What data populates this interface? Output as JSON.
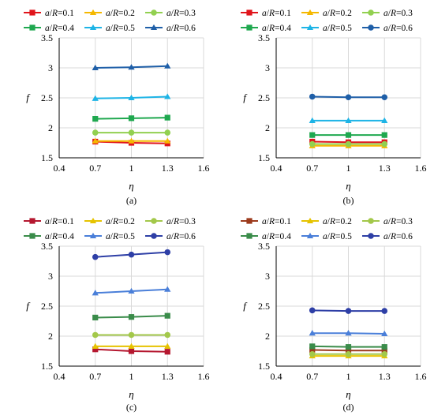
{
  "chart_data": [
    {
      "type": "line",
      "caption": "(a)",
      "xlabel": "η",
      "ylabel": "f",
      "xlim": [
        0.4,
        1.6
      ],
      "ylim": [
        1.5,
        3.5
      ],
      "xticks": [
        "0.4",
        "0.7",
        "1",
        "1.3",
        "1.6"
      ],
      "yticks": [
        "1.5",
        "2",
        "2.5",
        "3",
        "3.5"
      ],
      "grid": true,
      "legend": "top",
      "x": [
        0.7,
        1.0,
        1.3
      ],
      "series": [
        {
          "name": "a/R=0.1",
          "color": "#e0141b",
          "marker": "square",
          "values": [
            1.77,
            1.75,
            1.74
          ]
        },
        {
          "name": "a/R=0.2",
          "color": "#f5b800",
          "marker": "triangle",
          "values": [
            1.78,
            1.78,
            1.78
          ]
        },
        {
          "name": "a/R=0.3",
          "color": "#92d050",
          "marker": "circle",
          "values": [
            1.92,
            1.92,
            1.92
          ]
        },
        {
          "name": "a/R=0.4",
          "color": "#1fa84f",
          "marker": "square",
          "values": [
            2.15,
            2.16,
            2.17
          ]
        },
        {
          "name": "a/R=0.5",
          "color": "#1eb4e6",
          "marker": "triangle",
          "values": [
            2.49,
            2.5,
            2.52
          ]
        },
        {
          "name": "a/R=0.6",
          "color": "#1f5fa8",
          "marker": "triangle",
          "values": [
            3.0,
            3.01,
            3.03
          ]
        }
      ]
    },
    {
      "type": "line",
      "caption": "(b)",
      "xlabel": "η",
      "ylabel": "f",
      "xlim": [
        0.4,
        1.6
      ],
      "ylim": [
        1.5,
        3.5
      ],
      "xticks": [
        "0.4",
        "0.7",
        "1",
        "1.3",
        "1.6"
      ],
      "yticks": [
        "1.5",
        "2",
        "2.5",
        "3",
        "3.5"
      ],
      "grid": true,
      "legend": "top",
      "x": [
        0.7,
        1.0,
        1.3
      ],
      "series": [
        {
          "name": "a/R=0.1",
          "color": "#e0141b",
          "marker": "square",
          "values": [
            1.77,
            1.76,
            1.76
          ]
        },
        {
          "name": "a/R=0.2",
          "color": "#f5b800",
          "marker": "triangle",
          "values": [
            1.7,
            1.7,
            1.7
          ]
        },
        {
          "name": "a/R=0.3",
          "color": "#92d050",
          "marker": "circle",
          "values": [
            1.73,
            1.73,
            1.73
          ]
        },
        {
          "name": "a/R=0.4",
          "color": "#1fa84f",
          "marker": "square",
          "values": [
            1.88,
            1.88,
            1.88
          ]
        },
        {
          "name": "a/R=0.5",
          "color": "#1eb4e6",
          "marker": "triangle",
          "values": [
            2.12,
            2.12,
            2.12
          ]
        },
        {
          "name": "a/R=0.6",
          "color": "#1f5fa8",
          "marker": "circle",
          "values": [
            2.52,
            2.51,
            2.51
          ]
        }
      ]
    },
    {
      "type": "line",
      "caption": "(c)",
      "xlabel": "η",
      "ylabel": "f",
      "xlim": [
        0.4,
        1.6
      ],
      "ylim": [
        1.5,
        3.5
      ],
      "xticks": [
        "0.4",
        "0.7",
        "1",
        "1.3",
        "1.6"
      ],
      "yticks": [
        "1.5",
        "2",
        "2.5",
        "3",
        "3.5"
      ],
      "grid": true,
      "legend": "top",
      "x": [
        0.7,
        1.0,
        1.3
      ],
      "series": [
        {
          "name": "a/R=0.1",
          "color": "#b5172f",
          "marker": "square",
          "values": [
            1.78,
            1.75,
            1.74
          ]
        },
        {
          "name": "a/R=0.2",
          "color": "#e6c300",
          "marker": "triangle",
          "values": [
            1.83,
            1.83,
            1.83
          ]
        },
        {
          "name": "a/R=0.3",
          "color": "#a3c84a",
          "marker": "circle",
          "values": [
            2.02,
            2.02,
            2.02
          ]
        },
        {
          "name": "a/R=0.4",
          "color": "#3a8c4a",
          "marker": "square",
          "values": [
            2.31,
            2.32,
            2.34
          ]
        },
        {
          "name": "a/R=0.5",
          "color": "#4a7fd9",
          "marker": "triangle",
          "values": [
            2.72,
            2.75,
            2.78
          ]
        },
        {
          "name": "a/R=0.6",
          "color": "#2e3fa6",
          "marker": "circle",
          "values": [
            3.32,
            3.36,
            3.4
          ]
        }
      ]
    },
    {
      "type": "line",
      "caption": "(d)",
      "xlabel": "η",
      "ylabel": "f",
      "xlim": [
        0.4,
        1.6
      ],
      "ylim": [
        1.5,
        3.5
      ],
      "xticks": [
        "0.4",
        "0.7",
        "1",
        "1.3",
        "1.6"
      ],
      "yticks": [
        "1.5",
        "2",
        "2.5",
        "3",
        "3.5"
      ],
      "grid": true,
      "legend": "top",
      "x": [
        0.7,
        1.0,
        1.3
      ],
      "series": [
        {
          "name": "a/R=0.1",
          "color": "#9c3a1c",
          "marker": "square",
          "values": [
            1.77,
            1.76,
            1.76
          ]
        },
        {
          "name": "a/R=0.2",
          "color": "#e6c300",
          "marker": "triangle",
          "values": [
            1.67,
            1.67,
            1.67
          ]
        },
        {
          "name": "a/R=0.3",
          "color": "#a3c84a",
          "marker": "circle",
          "values": [
            1.7,
            1.7,
            1.7
          ]
        },
        {
          "name": "a/R=0.4",
          "color": "#3a8c4a",
          "marker": "square",
          "values": [
            1.83,
            1.82,
            1.82
          ]
        },
        {
          "name": "a/R=0.5",
          "color": "#4a7fd9",
          "marker": "triangle",
          "values": [
            2.05,
            2.05,
            2.04
          ]
        },
        {
          "name": "a/R=0.6",
          "color": "#2e3fa6",
          "marker": "circle",
          "values": [
            2.43,
            2.42,
            2.42
          ]
        }
      ]
    }
  ]
}
